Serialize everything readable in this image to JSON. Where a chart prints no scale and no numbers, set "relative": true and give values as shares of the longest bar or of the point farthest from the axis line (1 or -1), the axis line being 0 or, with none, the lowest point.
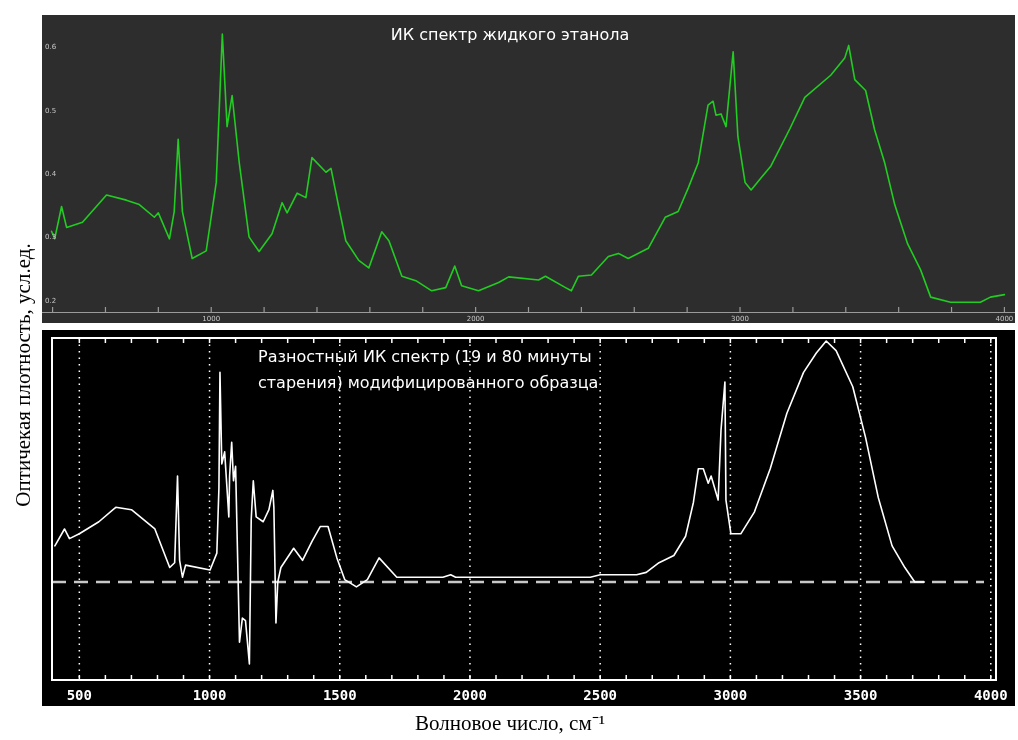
{
  "chart_data": [
    {
      "type": "line",
      "title": "ИК спектр жидкого этанола",
      "ylabel": "Оптичекая плотность, усл.ед.",
      "x": [
        396,
        408,
        434,
        453,
        513,
        604,
        679,
        728,
        785,
        800,
        842,
        860,
        875,
        891,
        928,
        981,
        1019,
        1042,
        1060,
        1079,
        1106,
        1143,
        1181,
        1230,
        1268,
        1287,
        1325,
        1358,
        1381,
        1434,
        1453,
        1483,
        1509,
        1558,
        1596,
        1645,
        1672,
        1721,
        1774,
        1834,
        1887,
        1921,
        1947,
        2011,
        2087,
        2125,
        2238,
        2264,
        2340,
        2362,
        2389,
        2438,
        2502,
        2540,
        2577,
        2653,
        2717,
        2766,
        2804,
        2842,
        2879,
        2898,
        2909,
        2928,
        2947,
        2974,
        2992,
        3019,
        3042,
        3117,
        3189,
        3245,
        3343,
        3396,
        3411,
        3434,
        3475,
        3509,
        3547,
        3585,
        3634,
        3683,
        3721,
        3796,
        3909,
        3947,
        4000
      ],
      "series": [
        {
          "color": "#22cc22",
          "values": [
            0.309,
            0.297,
            0.348,
            0.315,
            0.323,
            0.366,
            0.358,
            0.351,
            0.331,
            0.338,
            0.297,
            0.34,
            0.454,
            0.34,
            0.266,
            0.278,
            0.386,
            0.62,
            0.474,
            0.523,
            0.417,
            0.3,
            0.277,
            0.305,
            0.354,
            0.338,
            0.369,
            0.362,
            0.425,
            0.402,
            0.408,
            0.346,
            0.294,
            0.263,
            0.251,
            0.308,
            0.294,
            0.238,
            0.231,
            0.215,
            0.22,
            0.254,
            0.223,
            0.215,
            0.228,
            0.237,
            0.232,
            0.238,
            0.22,
            0.215,
            0.238,
            0.24,
            0.269,
            0.274,
            0.266,
            0.282,
            0.331,
            0.34,
            0.377,
            0.417,
            0.508,
            0.514,
            0.492,
            0.494,
            0.474,
            0.592,
            0.458,
            0.386,
            0.374,
            0.412,
            0.471,
            0.52,
            0.555,
            0.582,
            0.602,
            0.548,
            0.531,
            0.469,
            0.417,
            0.351,
            0.289,
            0.248,
            0.205,
            0.197,
            0.197,
            0.205,
            0.209
          ]
        }
      ],
      "xlim": [
        360,
        4040
      ],
      "ylim": [
        0.18,
        0.65
      ],
      "xticks": [
        {
          "value": 400,
          "label": null
        },
        {
          "value": 600,
          "label": null
        },
        {
          "value": 800,
          "label": null
        },
        1000,
        {
          "value": 1200,
          "label": null
        },
        {
          "value": 1400,
          "label": null
        },
        {
          "value": 1600,
          "label": null
        },
        {
          "value": 1800,
          "label": null
        },
        2000,
        {
          "value": 2200,
          "label": null
        },
        {
          "value": 2400,
          "label": null
        },
        {
          "value": 2600,
          "label": null
        },
        {
          "value": 2800,
          "label": null
        },
        3000,
        {
          "value": 3200,
          "label": null
        },
        {
          "value": 3400,
          "label": null
        },
        {
          "value": 3600,
          "label": null
        },
        {
          "value": 3800,
          "label": null
        },
        4000
      ],
      "yticks": [
        0.2,
        0.3,
        0.4,
        0.5,
        0.6
      ]
    },
    {
      "type": "line",
      "title": "Разностный ИК спектр (19 и 80 минуты старения) модифицированного образца",
      "xlabel": "Волновое число, см⁻¹",
      "relative": true,
      "x": [
        406,
        443,
        462,
        500,
        575,
        640,
        700,
        790,
        847,
        866,
        877,
        885,
        896,
        908,
        1002,
        1028,
        1036,
        1040,
        1047,
        1058,
        1074,
        1077,
        1085,
        1092,
        1100,
        1115,
        1126,
        1138,
        1153,
        1160,
        1168,
        1179,
        1206,
        1228,
        1243,
        1247,
        1255,
        1262,
        1274,
        1323,
        1357,
        1394,
        1425,
        1455,
        1489,
        1519,
        1564,
        1606,
        1651,
        1719,
        1896,
        1926,
        1945,
        2236,
        2262,
        2462,
        2500,
        2640,
        2677,
        2726,
        2783,
        2828,
        2858,
        2877,
        2896,
        2915,
        2926,
        2953,
        2964,
        2979,
        2983,
        3002,
        3040,
        3092,
        3153,
        3217,
        3281,
        3330,
        3368,
        3406,
        3470,
        3519,
        3568,
        3621,
        3670,
        3708,
        3745
      ],
      "series": [
        {
          "color": "#ffffff",
          "values": [
            0.15,
            0.22,
            0.18,
            0.2,
            0.25,
            0.31,
            0.3,
            0.22,
            0.06,
            0.08,
            0.44,
            0.09,
            0.02,
            0.07,
            0.05,
            0.12,
            0.39,
            0.87,
            0.49,
            0.54,
            0.27,
            0.44,
            0.58,
            0.42,
            0.48,
            -0.25,
            -0.15,
            -0.16,
            -0.34,
            0.26,
            0.42,
            0.27,
            0.25,
            0.3,
            0.38,
            0.31,
            -0.17,
            0,
            0.06,
            0.14,
            0.09,
            0.17,
            0.23,
            0.23,
            0.1,
            0.01,
            -0.02,
            0.01,
            0.1,
            0.02,
            0.02,
            0.03,
            0.02,
            0.02,
            0.02,
            0.02,
            0.03,
            0.03,
            0.04,
            0.08,
            0.11,
            0.19,
            0.33,
            0.47,
            0.47,
            0.41,
            0.44,
            0.34,
            0.63,
            0.83,
            0.34,
            0.2,
            0.2,
            0.29,
            0.47,
            0.7,
            0.87,
            0.95,
            1,
            0.96,
            0.81,
            0.6,
            0.35,
            0.15,
            0.06,
            0,
            0
          ]
        }
      ],
      "xlim": [
        395,
        4020
      ],
      "xticks": [
        500,
        {
          "value": 600,
          "label": null
        },
        {
          "value": 700,
          "label": null
        },
        {
          "value": 800,
          "label": null
        },
        {
          "value": 900,
          "label": null
        },
        1000,
        {
          "value": 1100,
          "label": null
        },
        {
          "value": 1200,
          "label": null
        },
        {
          "value": 1300,
          "label": null
        },
        {
          "value": 1400,
          "label": null
        },
        1500,
        {
          "value": 1600,
          "label": null
        },
        {
          "value": 1700,
          "label": null
        },
        {
          "value": 1800,
          "label": null
        },
        {
          "value": 1900,
          "label": null
        },
        2000,
        {
          "value": 2100,
          "label": null
        },
        {
          "value": 2200,
          "label": null
        },
        {
          "value": 2300,
          "label": null
        },
        {
          "value": 2400,
          "label": null
        },
        2500,
        {
          "value": 2600,
          "label": null
        },
        {
          "value": 2700,
          "label": null
        },
        {
          "value": 2800,
          "label": null
        },
        {
          "value": 2900,
          "label": null
        },
        3000,
        {
          "value": 3100,
          "label": null
        },
        {
          "value": 3200,
          "label": null
        },
        {
          "value": 3300,
          "label": null
        },
        {
          "value": 3400,
          "label": null
        },
        3500,
        {
          "value": 3600,
          "label": null
        },
        {
          "value": 3700,
          "label": null
        },
        {
          "value": 3800,
          "label": null
        },
        {
          "value": 3900,
          "label": null
        },
        4000
      ],
      "grid": "x",
      "tick_labels": "x",
      "ref_lines": [
        {
          "axis": "y",
          "value": 0,
          "color": "#c8c8c8",
          "line_style": "dashed"
        }
      ]
    }
  ]
}
